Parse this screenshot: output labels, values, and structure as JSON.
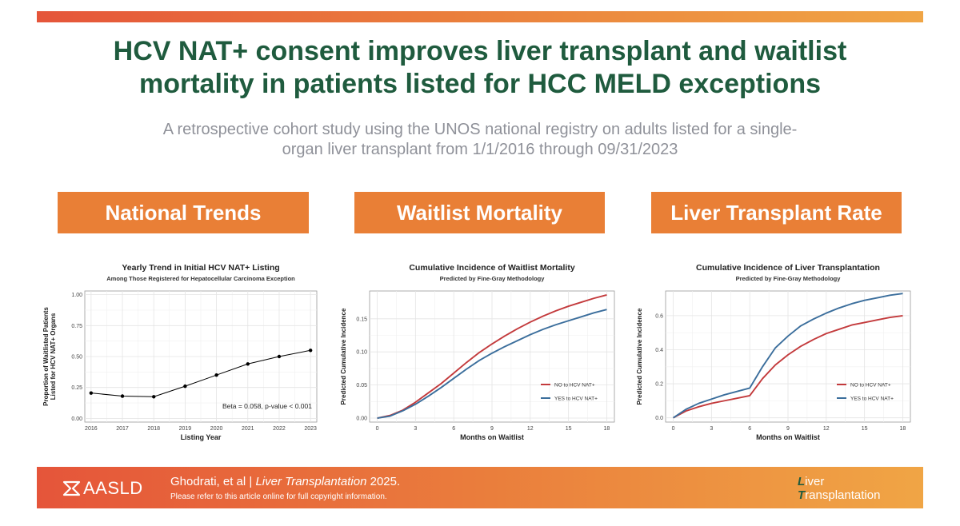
{
  "header": {
    "title_line1": "HCV NAT+ consent improves liver transplant and waitlist",
    "title_line2": "mortality in patients listed for HCC MELD exceptions",
    "subtitle_line1": "A retrospective cohort study using the UNOS national registry on adults listed for a single-",
    "subtitle_line2": "organ liver transplant from 1/1/2016 through 09/31/2023"
  },
  "sections": [
    "National Trends",
    "Waitlist Mortality",
    "Liver Transplant Rate"
  ],
  "chart_data": [
    {
      "type": "line",
      "title": "Yearly Trend in Initial HCV NAT+ Listing",
      "subtitle": "Among Those Registered for Hepatocellular Carcinoma Exception",
      "xlabel": "Listing Year",
      "ylabel_line1": "Proportion of Waitlisted Patients",
      "ylabel_line2": "Listed for HCV NAT+ Organs",
      "x": [
        2016,
        2017,
        2018,
        2019,
        2020,
        2021,
        2022,
        2023
      ],
      "xticks": [
        "2016",
        "2017",
        "2018",
        "2019",
        "2020",
        "2021",
        "2022",
        "2023"
      ],
      "yticks": [
        "0.00",
        "0.25",
        "0.50",
        "0.75",
        "1.00"
      ],
      "xlim": [
        2015.8,
        2023.2
      ],
      "ylim": [
        -0.03,
        1.03
      ],
      "grid": true,
      "series": [
        {
          "values": [
            0.205,
            0.18,
            0.175,
            0.26,
            0.35,
            0.44,
            0.5,
            0.55
          ],
          "color": "#000000",
          "markers": true
        }
      ],
      "annotation": "Beta = 0.058, p-value < 0.001"
    },
    {
      "type": "line",
      "title": "Cumulative Incidence of Waitlist Mortality",
      "subtitle": "Predicted by Fine-Gray Methodology",
      "xlabel": "Months on Waitlist",
      "ylabel_line1": "Predicted Cumulative Incidence",
      "x": [
        0,
        1,
        2,
        3,
        4,
        5,
        6,
        7,
        8,
        9,
        10,
        11,
        12,
        13,
        14,
        15,
        16,
        17,
        18
      ],
      "xticks": [
        "0",
        "3",
        "6",
        "9",
        "12",
        "15",
        "18"
      ],
      "yticks": [
        "0.00",
        "0.05",
        "0.10",
        "0.15"
      ],
      "xlim": [
        -0.6,
        18.6
      ],
      "ylim": [
        -0.006,
        0.192
      ],
      "grid": true,
      "legend": "bottom-right",
      "series": [
        {
          "name": "NO to HCV NAT+",
          "color": "#c33a3c",
          "values": [
            0,
            0.004,
            0.012,
            0.024,
            0.038,
            0.052,
            0.068,
            0.084,
            0.099,
            0.112,
            0.124,
            0.135,
            0.145,
            0.154,
            0.162,
            0.169,
            0.175,
            0.181,
            0.186
          ]
        },
        {
          "name": "YES to HCV NAT+",
          "color": "#3b6e9c",
          "values": [
            0,
            0.003,
            0.011,
            0.021,
            0.033,
            0.046,
            0.06,
            0.074,
            0.087,
            0.098,
            0.108,
            0.117,
            0.126,
            0.134,
            0.141,
            0.147,
            0.153,
            0.159,
            0.164
          ]
        }
      ]
    },
    {
      "type": "line",
      "title": "Cumulative Incidence of Liver Transplantation",
      "subtitle": "Predicted by Fine-Gray Methodology",
      "xlabel": "Months on Waitlist",
      "ylabel_line1": "Predicted Cumulative Incidence",
      "x": [
        0,
        1,
        2,
        3,
        4,
        5,
        6,
        7,
        8,
        9,
        10,
        11,
        12,
        13,
        14,
        15,
        16,
        17,
        18
      ],
      "xticks": [
        "0",
        "3",
        "6",
        "9",
        "12",
        "15",
        "18"
      ],
      "yticks": [
        "0.0",
        "0.2",
        "0.4",
        "0.6"
      ],
      "xlim": [
        -0.6,
        18.6
      ],
      "ylim": [
        -0.025,
        0.745
      ],
      "grid": true,
      "legend": "bottom-right",
      "series": [
        {
          "name": "NO to HCV NAT+",
          "color": "#c33a3c",
          "values": [
            0,
            0.04,
            0.065,
            0.085,
            0.1,
            0.115,
            0.13,
            0.23,
            0.31,
            0.37,
            0.42,
            0.46,
            0.495,
            0.52,
            0.545,
            0.56,
            0.575,
            0.59,
            0.6
          ]
        },
        {
          "name": "YES to HCV NAT+",
          "color": "#3b6e9c",
          "values": [
            0,
            0.05,
            0.085,
            0.11,
            0.135,
            0.155,
            0.175,
            0.3,
            0.41,
            0.48,
            0.54,
            0.58,
            0.615,
            0.645,
            0.67,
            0.69,
            0.705,
            0.72,
            0.73
          ]
        }
      ]
    }
  ],
  "footer": {
    "logo": "AASLD",
    "authors": "Ghodrati, et al",
    "separator": "|",
    "journal": "Liver Transplantation",
    "year": "2025.",
    "copyright": "Please refer to this article online for full copyright information.",
    "journal_logo_initial1": "L",
    "journal_logo_rest1": "iver",
    "journal_logo_initial2": "T",
    "journal_logo_rest2": "ransplantation"
  },
  "colors": {
    "brand_green": "#1f5b3e",
    "brand_orange": "#e97f36"
  }
}
